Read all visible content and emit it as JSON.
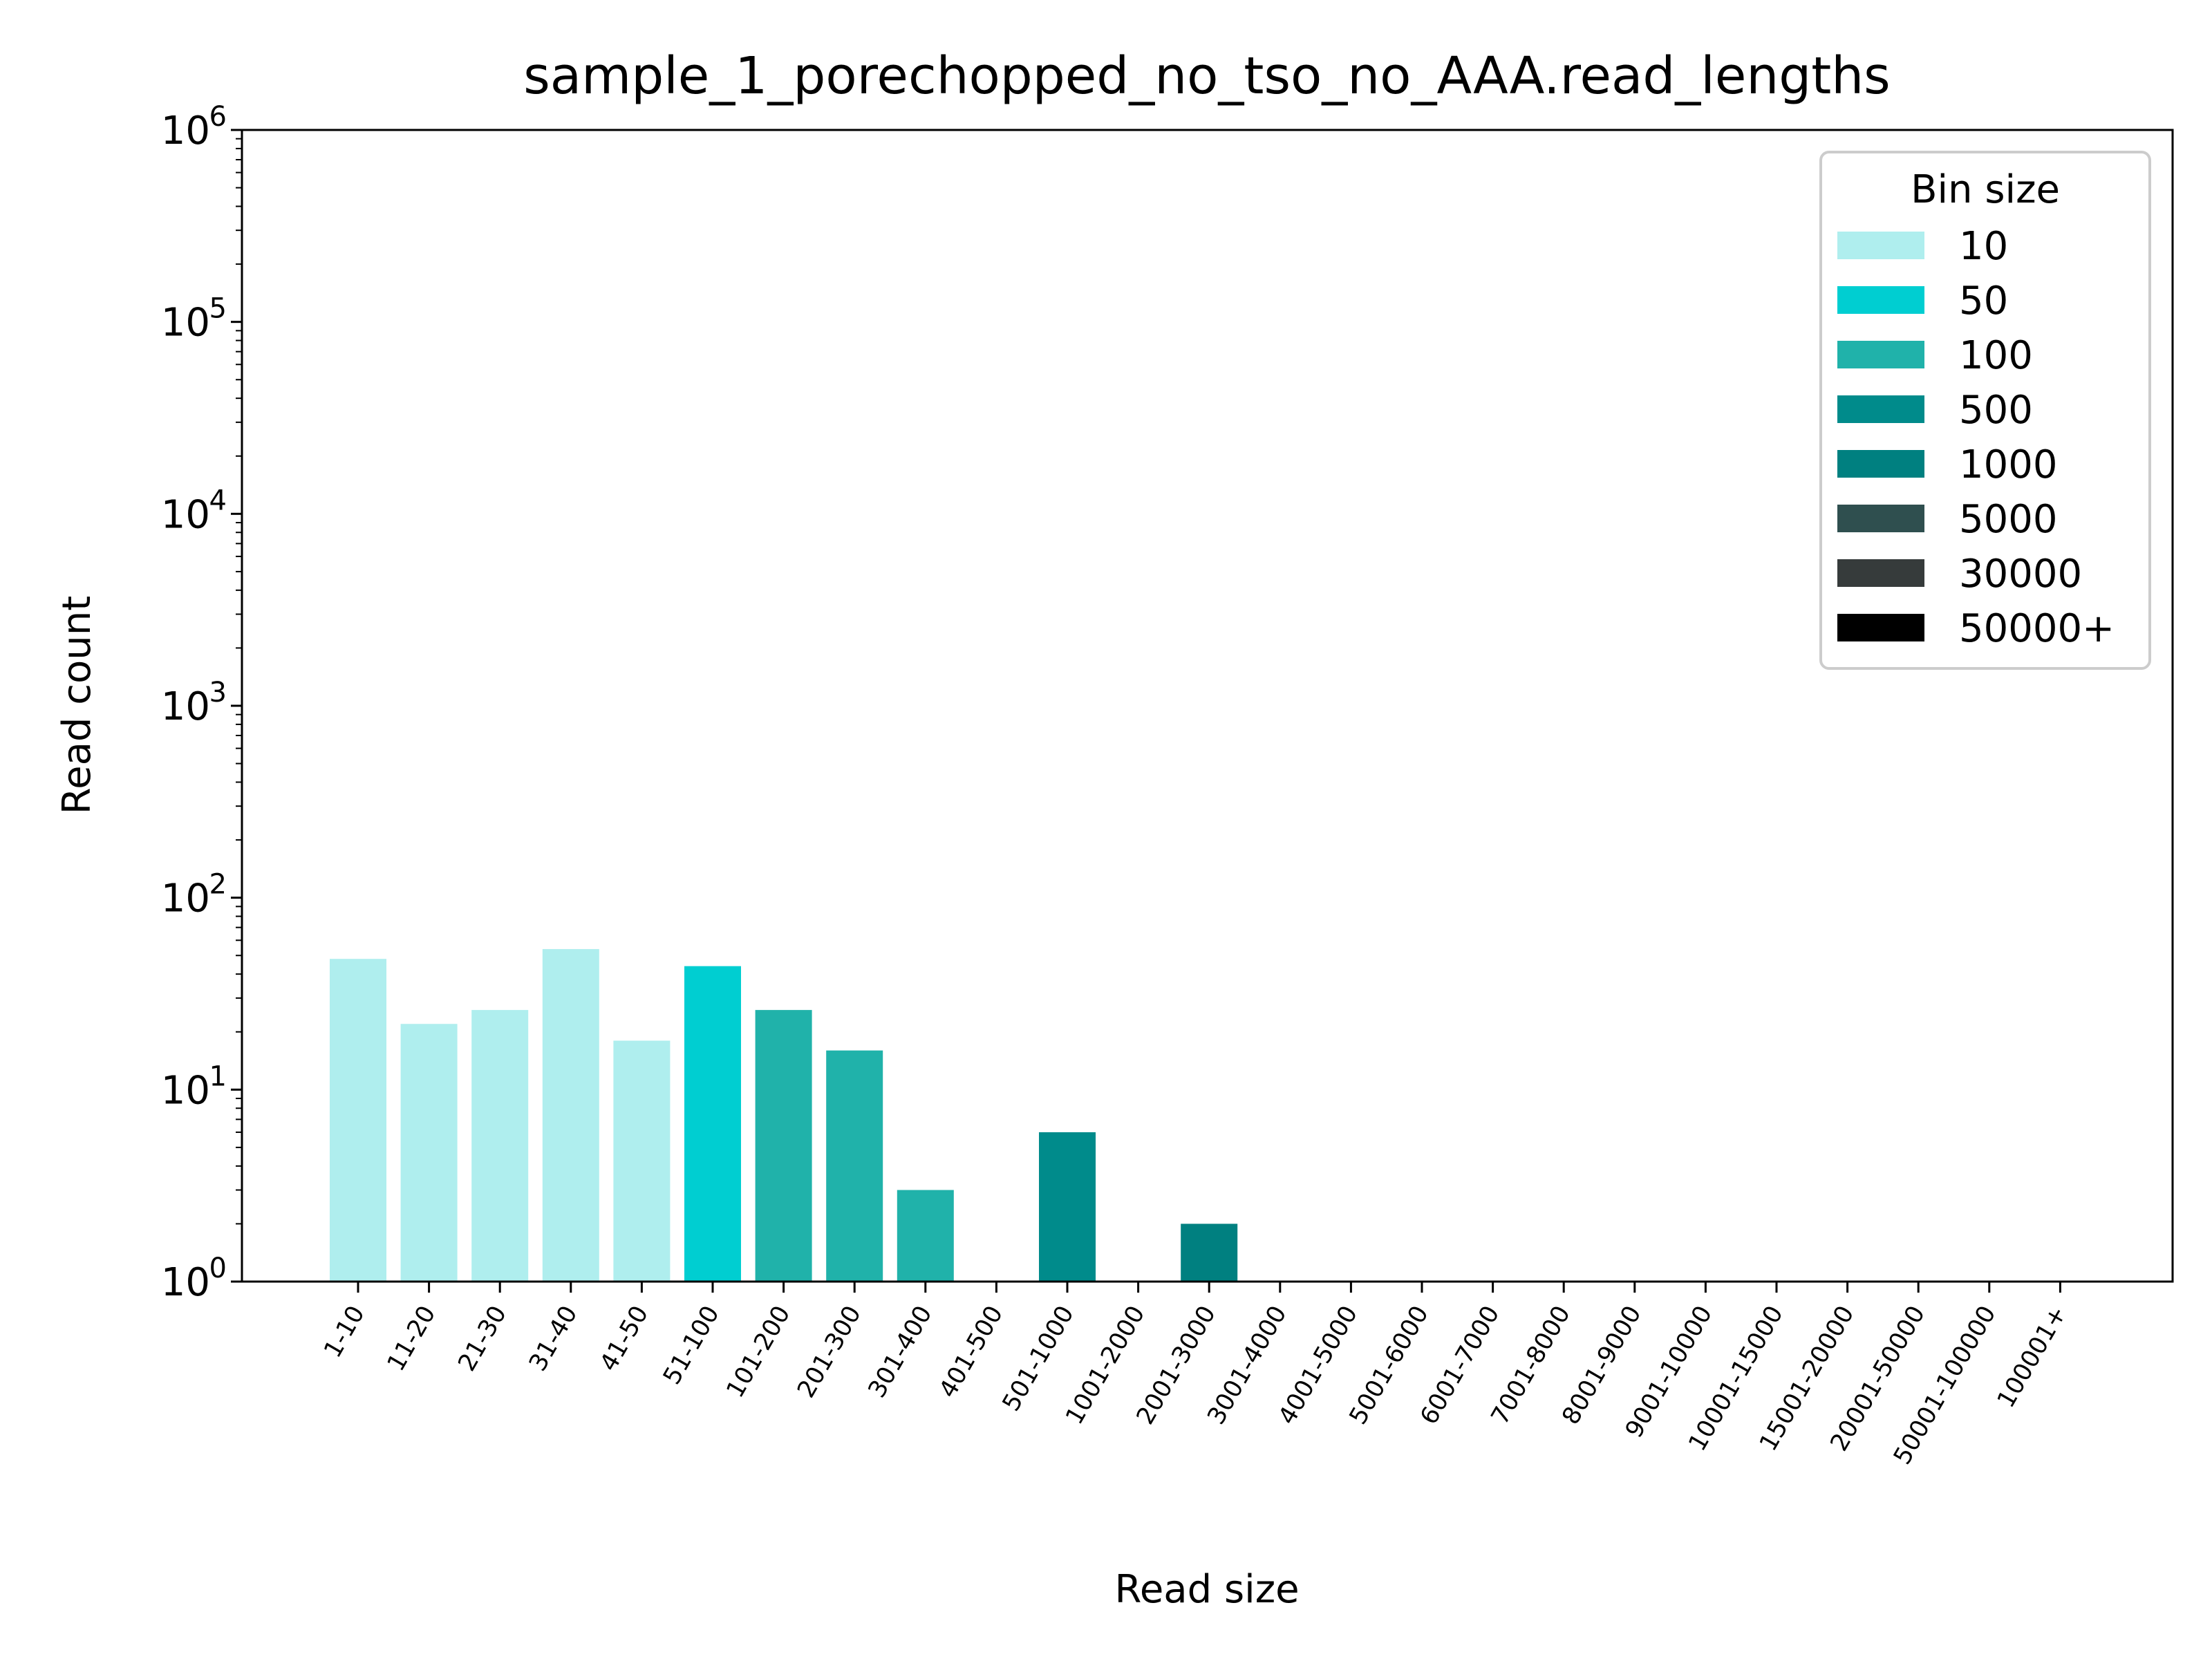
{
  "chart_data": {
    "type": "bar",
    "title": "sample_1_porechopped_no_tso_no_AAA.read_lengths",
    "xlabel": "Read size",
    "ylabel": "Read count",
    "yscale": "log",
    "ylim": [
      1,
      1000000
    ],
    "y_ticks": [
      {
        "base": "10",
        "exp": "0",
        "value": 1
      },
      {
        "base": "10",
        "exp": "1",
        "value": 10
      },
      {
        "base": "10",
        "exp": "2",
        "value": 100
      },
      {
        "base": "10",
        "exp": "3",
        "value": 1000
      },
      {
        "base": "10",
        "exp": "4",
        "value": 10000
      },
      {
        "base": "10",
        "exp": "5",
        "value": 100000
      },
      {
        "base": "10",
        "exp": "6",
        "value": 1000000
      }
    ],
    "grid": false,
    "legend": {
      "title": "Bin size",
      "position": "top-right",
      "entries": [
        {
          "label": "10",
          "color": "#afeeee"
        },
        {
          "label": "50",
          "color": "#00ced1"
        },
        {
          "label": "100",
          "color": "#20b2aa"
        },
        {
          "label": "500",
          "color": "#008b8b"
        },
        {
          "label": "1000",
          "color": "#008080"
        },
        {
          "label": "5000",
          "color": "#2f4f4f"
        },
        {
          "label": "30000",
          "color": "#363b3b"
        },
        {
          "label": "50000+",
          "color": "#000000"
        }
      ]
    },
    "categories": [
      "1-10",
      "11-20",
      "21-30",
      "31-40",
      "41-50",
      "51-100",
      "101-200",
      "201-300",
      "301-400",
      "401-500",
      "501-1000",
      "1001-2000",
      "2001-3000",
      "3001-4000",
      "4001-5000",
      "5001-6000",
      "6001-7000",
      "7001-8000",
      "8001-9000",
      "9001-10000",
      "10001-15000",
      "15001-20000",
      "20001-50000",
      "50001-100000",
      "100001+"
    ],
    "values": [
      48,
      22,
      26,
      54,
      18,
      44,
      26,
      16,
      3,
      0,
      6,
      0,
      2,
      0,
      0,
      0,
      0,
      0,
      0,
      0,
      0,
      0,
      0,
      0,
      0
    ],
    "bin_sizes": [
      "10",
      "10",
      "10",
      "10",
      "10",
      "50",
      "100",
      "100",
      "100",
      "500",
      "500",
      "1000",
      "1000",
      "1000",
      "1000",
      "5000",
      "5000",
      "5000",
      "5000",
      "5000",
      "30000",
      "30000",
      "30000",
      "50000+",
      "50000+"
    ]
  }
}
